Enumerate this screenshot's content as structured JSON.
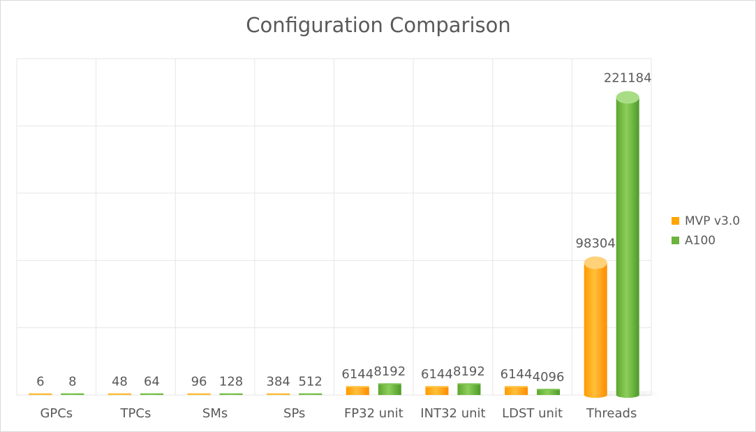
{
  "chart_data": {
    "type": "bar",
    "title": "Configuration Comparison",
    "xlabel": "",
    "ylabel": "",
    "categories": [
      "GPCs",
      "TPCs",
      "SMs",
      "SPs",
      "FP32 unit",
      "INT32 unit",
      "LDST unit",
      "Threads"
    ],
    "series": [
      {
        "name": "MVP v3.0",
        "color": "#ffa500",
        "values": [
          6,
          48,
          96,
          384,
          6144,
          6144,
          6144,
          98304
        ]
      },
      {
        "name": "A100",
        "color": "#6db33f",
        "values": [
          8,
          64,
          128,
          512,
          8192,
          8192,
          4096,
          221184
        ]
      }
    ],
    "ylim": [
      0,
      250000
    ],
    "grid": true,
    "legend_position": "right",
    "bar_style": "3d-cylinder",
    "data_labels": true
  }
}
